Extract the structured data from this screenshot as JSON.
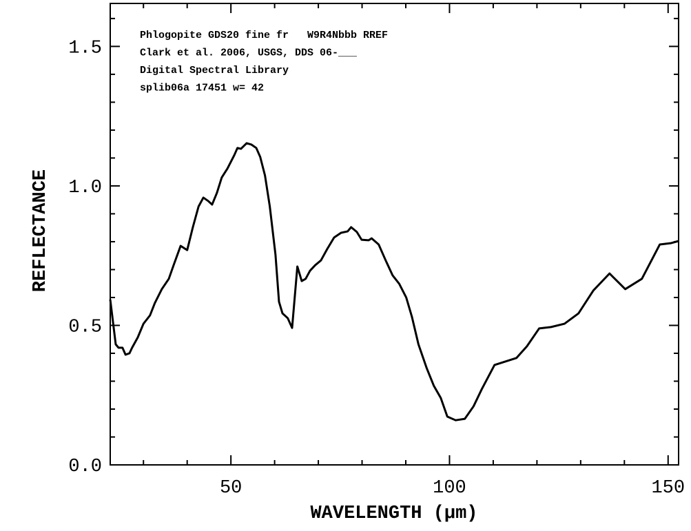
{
  "chart_data": {
    "type": "line",
    "annotations": [
      "Phlogopite GDS20 fine fr   W9R4Nbbb RREF",
      "Clark et al. 2006, USGS, DDS 06-___",
      "Digital Spectral Library",
      "splib06a 17451 w= 42"
    ],
    "xlabel": "WAVELENGTH (μm)",
    "ylabel": "REFLECTANCE",
    "xlim": [
      22.4,
      152.4
    ],
    "ylim": [
      0,
      1.654
    ],
    "xticks": [
      50,
      100,
      150
    ],
    "yticks": [
      {
        "value": 0,
        "label": "0.0"
      },
      0.5,
      {
        "value": 1,
        "label": "1.0"
      },
      1.5
    ],
    "xminorticks": [
      30,
      40,
      60,
      70,
      80,
      90,
      110,
      120,
      130,
      140
    ],
    "yminorticks": [
      0.1,
      0.2,
      0.3,
      0.4,
      0.6,
      0.7,
      0.8,
      0.9,
      1.1,
      1.2,
      1.3,
      1.4,
      1.6
    ],
    "color": "#000000",
    "x": [
      22.4,
      23.66,
      24.3,
      25.2,
      25.9,
      26.8,
      27.4,
      28.7,
      30.0,
      31.5,
      32.6,
      34.2,
      35.8,
      36.9,
      38.5,
      40.0,
      41.3,
      42.6,
      43.7,
      44.8,
      45.7,
      46.8,
      47.9,
      49.2,
      50.8,
      51.5,
      52.3,
      53.6,
      54.7,
      55.8,
      56.7,
      57.8,
      58.9,
      60.2,
      61.0,
      61.8,
      63.0,
      64.0,
      65.2,
      66.2,
      67.1,
      68.1,
      69.3,
      70.6,
      72.0,
      73.6,
      75.2,
      76.7,
      77.5,
      78.8,
      79.9,
      81.5,
      82.2,
      83.8,
      85.4,
      87.0,
      88.5,
      90.1,
      91.4,
      92.9,
      94.8,
      96.4,
      98.0,
      99.5,
      101.4,
      103.5,
      105.5,
      107.4,
      110.3,
      115.3,
      117.7,
      120.5,
      123.2,
      126.3,
      129.5,
      132.9,
      136.6,
      140.2,
      144.0,
      148.1,
      150.7,
      152.3
    ],
    "values": [
      0.593,
      0.432,
      0.42,
      0.42,
      0.395,
      0.4,
      0.42,
      0.457,
      0.506,
      0.536,
      0.58,
      0.63,
      0.667,
      0.716,
      0.785,
      0.77,
      0.852,
      0.926,
      0.958,
      0.946,
      0.933,
      0.975,
      1.03,
      1.062,
      1.111,
      1.136,
      1.133,
      1.153,
      1.148,
      1.136,
      1.104,
      1.037,
      0.926,
      0.753,
      0.585,
      0.543,
      0.526,
      0.491,
      0.711,
      0.659,
      0.667,
      0.696,
      0.716,
      0.733,
      0.773,
      0.815,
      0.832,
      0.837,
      0.852,
      0.835,
      0.807,
      0.805,
      0.812,
      0.79,
      0.733,
      0.679,
      0.649,
      0.6,
      0.531,
      0.432,
      0.346,
      0.284,
      0.24,
      0.173,
      0.16,
      0.165,
      0.21,
      0.272,
      0.358,
      0.383,
      0.425,
      0.489,
      0.494,
      0.506,
      0.543,
      0.625,
      0.686,
      0.63,
      0.667,
      0.79,
      0.795,
      0.802
    ]
  }
}
